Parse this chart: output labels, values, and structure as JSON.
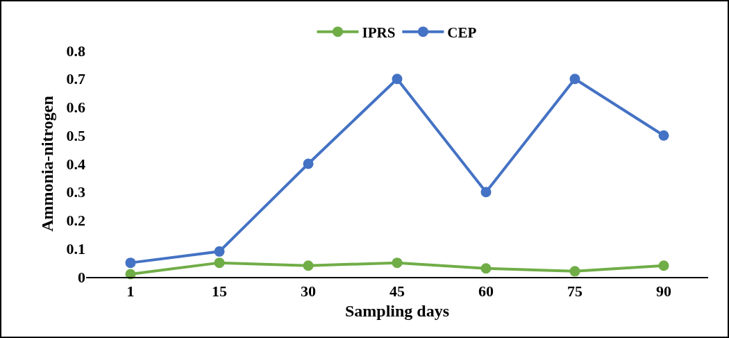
{
  "chart_data": {
    "type": "line",
    "xlabel": "Sampling days",
    "ylabel": "Ammonia-nitrogen",
    "categories": [
      "1",
      "15",
      "30",
      "45",
      "60",
      "75",
      "90"
    ],
    "series": [
      {
        "name": "IPRS",
        "color": "#70ad47",
        "values": [
          0.01,
          0.05,
          0.04,
          0.05,
          0.03,
          0.02,
          0.04
        ]
      },
      {
        "name": "CEP",
        "color": "#4472c4",
        "values": [
          0.05,
          0.09,
          0.4,
          0.7,
          0.3,
          0.7,
          0.5
        ]
      }
    ],
    "ylim": [
      0,
      0.8
    ],
    "yticks": [
      0,
      0.1,
      0.2,
      0.3,
      0.4,
      0.5,
      0.6,
      0.7,
      0.8
    ],
    "grid": false,
    "legend": "top",
    "marker": "circle",
    "line_style": "solid"
  }
}
